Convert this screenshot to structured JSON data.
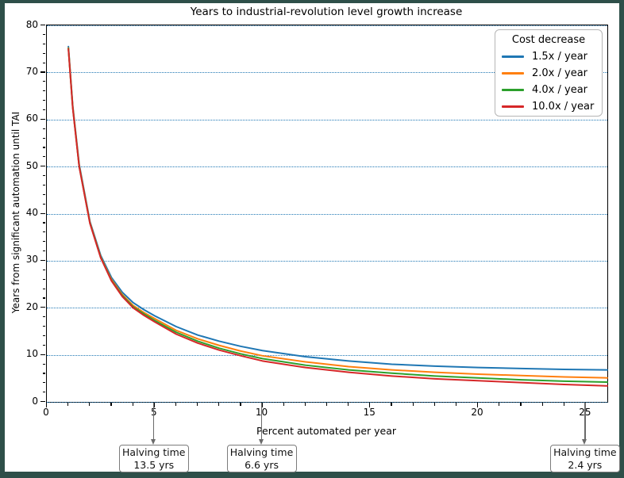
{
  "figure": {
    "title": "Years to industrial-revolution level growth increase",
    "page_background": "#2e4f49",
    "figure_background": "#ffffff"
  },
  "axes": {
    "xlabel": "Percent automated per year",
    "ylabel": "Years from significant automation until TAI",
    "xlim": [
      0,
      26
    ],
    "ylim": [
      0,
      80
    ],
    "x_major_ticks": [
      0,
      5,
      10,
      15,
      20,
      25
    ],
    "x_minor_step": 1,
    "y_major_ticks": [
      0,
      10,
      20,
      30,
      40,
      50,
      60,
      70,
      80
    ],
    "y_minor_step": 2,
    "grid_color": "#1f77b4",
    "grid_style": "dotted",
    "spine_color": "#000000"
  },
  "legend": {
    "title": "Cost decrease",
    "position": "upper right",
    "entries": [
      {
        "label": "1.5x / year",
        "color": "#1f77b4"
      },
      {
        "label": "2.0x / year",
        "color": "#ff7f0e"
      },
      {
        "label": "4.0x / year",
        "color": "#2ca02c"
      },
      {
        "label": "10.0x / year",
        "color": "#d62728"
      }
    ]
  },
  "halving_annotations": {
    "line1": "Halving time",
    "items": [
      {
        "x": 5,
        "line2": "13.5 yrs"
      },
      {
        "x": 10,
        "line2": "6.6 yrs"
      },
      {
        "x": 25,
        "line2": "2.4 yrs"
      }
    ],
    "arrow_color": "#6a6a6a"
  },
  "chart_data": {
    "type": "line",
    "title": "Years to industrial-revolution level growth increase",
    "xlabel": "Percent automated per year",
    "ylabel": "Years from significant automation until TAI",
    "xlim": [
      0,
      26
    ],
    "ylim": [
      0,
      80
    ],
    "grid": "horizontal dotted blue, every 10 years",
    "legend_position": "upper right",
    "legend_title": "Cost decrease",
    "x": [
      1,
      1.2,
      1.5,
      2,
      2.5,
      3,
      3.5,
      4,
      4.5,
      5,
      6,
      7,
      8,
      9,
      10,
      12,
      14,
      16,
      18,
      20,
      22,
      24,
      26
    ],
    "series": [
      {
        "name": "1.5x / year",
        "color": "#1f77b4",
        "values": [
          75.5,
          63.0,
          50.5,
          38.3,
          31.1,
          26.4,
          23.3,
          21.1,
          19.6,
          18.3,
          16.0,
          14.2,
          12.9,
          11.8,
          10.9,
          9.6,
          8.7,
          8.0,
          7.6,
          7.3,
          7.1,
          6.9,
          6.8
        ]
      },
      {
        "name": "2.0x / year",
        "color": "#ff7f0e",
        "values": [
          75.2,
          62.8,
          50.2,
          38.1,
          30.8,
          26.0,
          22.8,
          20.5,
          19.0,
          17.7,
          15.2,
          13.4,
          12.0,
          10.8,
          9.8,
          8.5,
          7.5,
          6.8,
          6.3,
          5.9,
          5.6,
          5.3,
          5.1
        ]
      },
      {
        "name": "4.0x / year",
        "color": "#2ca02c",
        "values": [
          75.1,
          62.6,
          50.1,
          38.0,
          30.7,
          25.8,
          22.6,
          20.2,
          18.7,
          17.3,
          14.8,
          12.9,
          11.4,
          10.2,
          9.2,
          7.8,
          6.8,
          6.1,
          5.5,
          5.1,
          4.7,
          4.4,
          4.2
        ]
      },
      {
        "name": "10.0x / year",
        "color": "#d62728",
        "values": [
          75.0,
          62.5,
          50.0,
          37.9,
          30.6,
          25.7,
          22.4,
          20.0,
          18.4,
          17.0,
          14.4,
          12.5,
          11.0,
          9.8,
          8.7,
          7.3,
          6.3,
          5.5,
          4.9,
          4.5,
          4.1,
          3.7,
          3.4
        ]
      }
    ],
    "annotations": [
      {
        "x": 5,
        "text": "Halving time 13.5 yrs"
      },
      {
        "x": 10,
        "text": "Halving time 6.6 yrs"
      },
      {
        "x": 25,
        "text": "Halving time 2.4 yrs"
      }
    ]
  }
}
